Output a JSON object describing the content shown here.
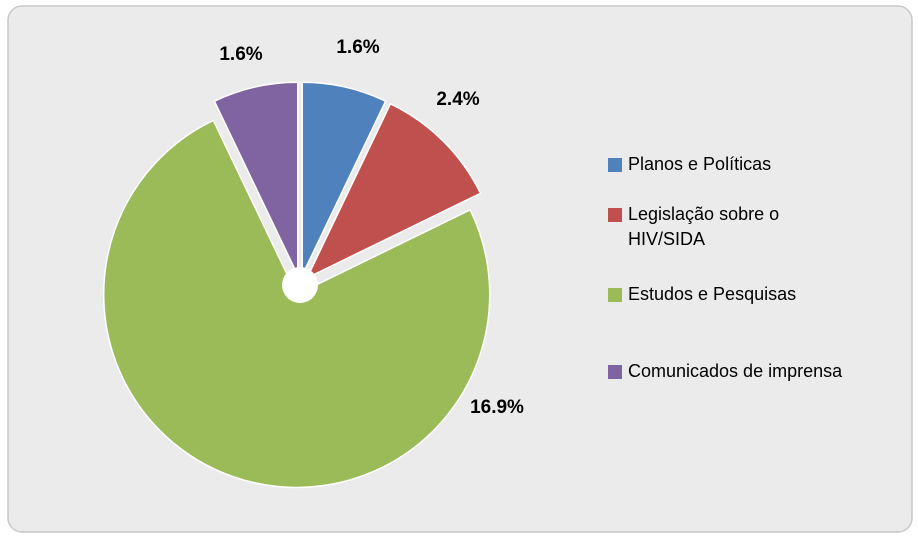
{
  "chart_data": {
    "type": "pie",
    "categories": [
      "Planos e Políticas",
      "Legislação sobre o HIV/SIDA",
      "Estudos e Pesquisas",
      "Comunicados de imprensa"
    ],
    "values": [
      1.6,
      2.4,
      16.9,
      1.6
    ],
    "value_labels": [
      "1.6%",
      "2.4%",
      "16.9%",
      "1.6%"
    ],
    "colors": [
      "#4f81bd",
      "#c0504d",
      "#9bbb59",
      "#8064a2"
    ],
    "legend": "right"
  }
}
